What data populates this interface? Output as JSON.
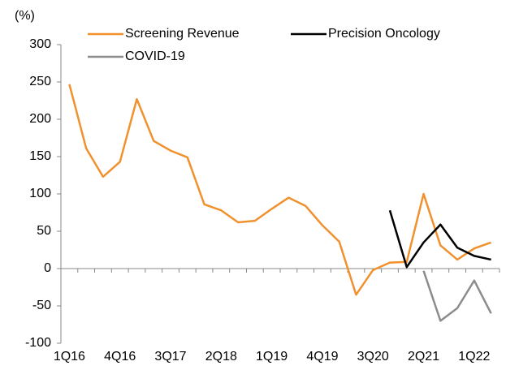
{
  "chart_data": {
    "type": "line",
    "axis_label": "(%)",
    "categories": [
      "1Q16",
      null,
      null,
      "4Q16",
      null,
      null,
      "3Q17",
      null,
      null,
      "2Q18",
      null,
      null,
      "1Q19",
      null,
      null,
      "4Q19",
      null,
      null,
      "3Q20",
      null,
      null,
      "2Q21",
      null,
      null,
      "1Q22",
      null
    ],
    "series": [
      {
        "name": "Screening Revenue",
        "color": "#f0912e",
        "values": [
          247,
          161,
          123,
          143,
          227,
          171,
          158,
          149,
          86,
          78,
          62,
          64,
          80,
          95,
          84,
          58,
          36,
          -35,
          -2,
          8,
          9,
          100,
          31,
          12,
          27,
          35
        ]
      },
      {
        "name": "Precision Oncology",
        "color": "#000000",
        "values": [
          null,
          null,
          null,
          null,
          null,
          null,
          null,
          null,
          null,
          null,
          null,
          null,
          null,
          null,
          null,
          null,
          null,
          null,
          null,
          78,
          2,
          35,
          59,
          28,
          17,
          12
        ]
      },
      {
        "name": "COVID-19",
        "color": "#8c8c8c",
        "values": [
          null,
          null,
          null,
          null,
          null,
          null,
          null,
          null,
          null,
          null,
          null,
          null,
          null,
          null,
          null,
          null,
          null,
          null,
          null,
          null,
          null,
          -3,
          -70,
          -53,
          -16,
          -60
        ]
      }
    ],
    "ylim": [
      -100,
      300
    ],
    "yticks": [
      -100,
      -50,
      0,
      50,
      100,
      150,
      200,
      250,
      300
    ]
  }
}
